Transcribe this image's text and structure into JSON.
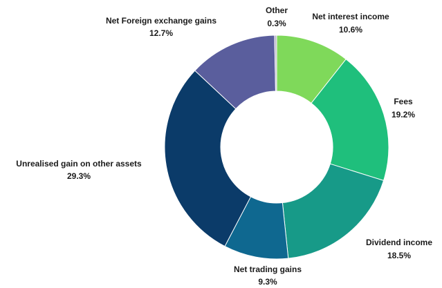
{
  "chart_data": {
    "type": "pie",
    "donut": true,
    "categories": [
      "Net interest income",
      "Fees",
      "Dividend income",
      "Net trading gains",
      "Unrealised gain on other assets",
      "Net Foreign exchange gains",
      "Other"
    ],
    "values": [
      10.6,
      19.2,
      18.5,
      9.3,
      29.3,
      12.7,
      0.3
    ],
    "value_labels": [
      "10.6%",
      "19.2%",
      "18.5%",
      "9.3%",
      "29.3%",
      "12.7%",
      "0.3%"
    ],
    "colors": [
      "#7fd95a",
      "#1fbf7c",
      "#179a88",
      "#0f6890",
      "#0b3b69",
      "#5a5e9d",
      "#b9b2c8"
    ]
  }
}
